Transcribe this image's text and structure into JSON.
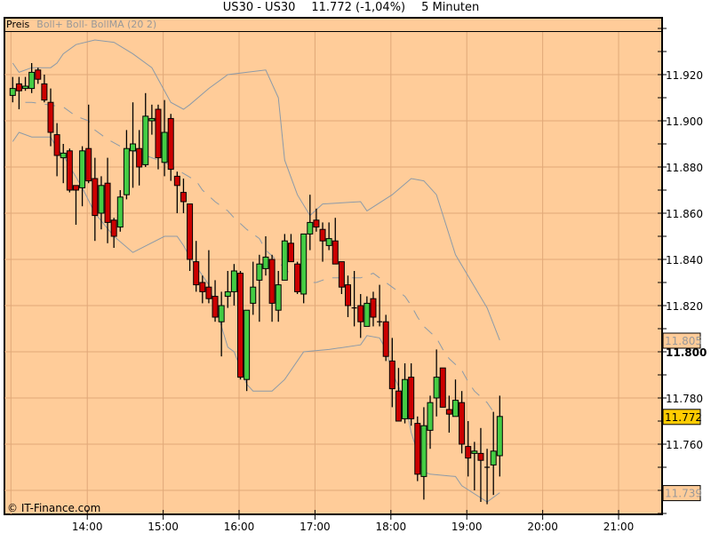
{
  "header": {
    "symbol": "US30 - US30",
    "price": "11.772 (-1,04%)",
    "interval": "5 Minuten"
  },
  "legend": {
    "main": "Preis",
    "indicator": "Boll+ Boll- BollMA (20 2)"
  },
  "copyright": "© IT-Finance.com",
  "colors": {
    "background": "#ffcc99",
    "grid": "#e0a878",
    "up": "#44cc44",
    "down": "#cc0000",
    "band": "#8c9aa8",
    "last_price_box": "#ffcc00"
  },
  "price_markers": {
    "upper_band": "11.805",
    "last": "11.772",
    "lower_band": "11.739"
  },
  "chart_data": {
    "type": "candlestick",
    "title": "US30 - US30",
    "x_ticks": [
      "14:00",
      "15:00",
      "16:00",
      "17:00",
      "18:00",
      "19:00",
      "20:00",
      "21:00"
    ],
    "y_ticks": [
      "11.920",
      "11.900",
      "11.880",
      "11.860",
      "11.840",
      "11.820",
      "11.800",
      "11.780",
      "11.760"
    ],
    "ylim": [
      11.729,
      11.944
    ],
    "xlim": [
      "12:59",
      "21:35"
    ],
    "grid": true,
    "candles": [
      [
        "13:00",
        11.911,
        11.919,
        11.908,
        11.914
      ],
      [
        "13:05",
        11.916,
        11.919,
        11.905,
        11.913
      ],
      [
        "13:10",
        11.914,
        11.919,
        11.913,
        11.915
      ],
      [
        "13:15",
        11.914,
        11.925,
        11.912,
        11.921
      ],
      [
        "13:20",
        11.922,
        11.923,
        11.916,
        11.918
      ],
      [
        "13:25",
        11.916,
        11.92,
        11.908,
        11.909
      ],
      [
        "13:30",
        11.908,
        11.914,
        11.889,
        11.895
      ],
      [
        "13:35",
        11.894,
        11.899,
        11.876,
        11.885
      ],
      [
        "13:40",
        11.884,
        11.89,
        11.873,
        11.886
      ],
      [
        "13:45",
        11.887,
        11.888,
        11.869,
        11.87
      ],
      [
        "13:50",
        11.872,
        11.872,
        11.855,
        11.87
      ],
      [
        "13:55",
        11.871,
        11.889,
        11.863,
        11.887
      ],
      [
        "14:00",
        11.888,
        11.907,
        11.873,
        11.874
      ],
      [
        "14:05",
        11.875,
        11.884,
        11.848,
        11.859
      ],
      [
        "14:10",
        11.86,
        11.876,
        11.853,
        11.872
      ],
      [
        "14:15",
        11.873,
        11.884,
        11.847,
        11.856
      ],
      [
        "14:20",
        11.857,
        11.858,
        11.845,
        11.85
      ],
      [
        "14:25",
        11.854,
        11.87,
        11.852,
        11.867
      ],
      [
        "14:30",
        11.868,
        11.896,
        11.866,
        11.888
      ],
      [
        "14:35",
        11.887,
        11.908,
        11.871,
        11.89
      ],
      [
        "14:40",
        11.888,
        11.896,
        11.872,
        11.88
      ],
      [
        "14:45",
        11.881,
        11.912,
        11.88,
        11.902
      ],
      [
        "14:50",
        11.9,
        11.907,
        11.894,
        11.901
      ],
      [
        "14:55",
        11.905,
        11.907,
        11.879,
        11.884
      ],
      [
        "15:00",
        11.882,
        11.909,
        11.876,
        11.895
      ],
      [
        "15:05",
        11.901,
        11.903,
        11.874,
        11.879
      ],
      [
        "15:10",
        11.876,
        11.878,
        11.86,
        11.872
      ],
      [
        "15:15",
        11.869,
        11.875,
        11.86,
        11.865
      ],
      [
        "15:20",
        11.864,
        11.864,
        11.835,
        11.84
      ],
      [
        "15:25",
        11.839,
        11.848,
        11.826,
        11.829
      ],
      [
        "15:30",
        11.83,
        11.833,
        11.821,
        11.826
      ],
      [
        "15:35",
        11.828,
        11.844,
        11.821,
        11.823
      ],
      [
        "15:40",
        11.824,
        11.831,
        11.813,
        11.815
      ],
      [
        "15:45",
        11.813,
        11.826,
        11.798,
        11.82
      ],
      [
        "15:50",
        11.824,
        11.835,
        11.819,
        11.826
      ],
      [
        "15:55",
        11.826,
        11.838,
        11.82,
        11.835
      ],
      [
        "16:00",
        11.834,
        11.835,
        11.788,
        11.789
      ],
      [
        "16:05",
        11.788,
        11.818,
        11.783,
        11.818
      ],
      [
        "16:10",
        11.821,
        11.839,
        11.816,
        11.828
      ],
      [
        "16:15",
        11.831,
        11.842,
        11.813,
        11.838
      ],
      [
        "16:20",
        11.836,
        11.85,
        11.833,
        11.841
      ],
      [
        "16:25",
        11.84,
        11.842,
        11.813,
        11.821
      ],
      [
        "16:30",
        11.818,
        11.835,
        11.813,
        11.829
      ],
      [
        "16:35",
        11.831,
        11.851,
        11.831,
        11.848
      ],
      [
        "16:40",
        11.847,
        11.851,
        11.839,
        11.839
      ],
      [
        "16:45",
        11.838,
        11.839,
        11.825,
        11.826
      ],
      [
        "16:50",
        11.825,
        11.851,
        11.821,
        11.851
      ],
      [
        "16:55",
        11.851,
        11.868,
        11.844,
        11.856
      ],
      [
        "17:00",
        11.857,
        11.862,
        11.852,
        11.854
      ],
      [
        "17:05",
        11.853,
        11.856,
        11.839,
        11.848
      ],
      [
        "17:10",
        11.846,
        11.856,
        11.844,
        11.849
      ],
      [
        "17:15",
        11.848,
        11.858,
        11.838,
        11.838
      ],
      [
        "17:20",
        11.839,
        11.839,
        11.825,
        11.828
      ],
      [
        "17:25",
        11.829,
        11.833,
        11.815,
        11.82
      ],
      [
        "17:30",
        11.819,
        11.835,
        11.811,
        11.819
      ],
      [
        "17:35",
        11.82,
        11.825,
        11.806,
        11.813
      ],
      [
        "17:40",
        11.811,
        11.824,
        11.811,
        11.821
      ],
      [
        "17:45",
        11.823,
        11.826,
        11.811,
        11.815
      ],
      [
        "17:50",
        11.813,
        11.829,
        11.811,
        11.813
      ],
      [
        "17:55",
        11.813,
        11.816,
        11.796,
        11.798
      ],
      [
        "18:00",
        11.796,
        11.806,
        11.776,
        11.784
      ],
      [
        "18:05",
        11.783,
        11.793,
        11.77,
        11.77
      ],
      [
        "18:10",
        11.771,
        11.795,
        11.769,
        11.788
      ],
      [
        "18:15",
        11.789,
        11.795,
        11.768,
        11.771
      ],
      [
        "18:20",
        11.769,
        11.772,
        11.744,
        11.747
      ],
      [
        "18:25",
        11.746,
        11.776,
        11.736,
        11.768
      ],
      [
        "18:30",
        11.766,
        11.781,
        11.758,
        11.778
      ],
      [
        "18:35",
        11.78,
        11.801,
        11.772,
        11.789
      ],
      [
        "18:40",
        11.793,
        11.793,
        11.776,
        11.776
      ],
      [
        "18:45",
        11.775,
        11.781,
        11.765,
        11.773
      ],
      [
        "18:50",
        11.772,
        11.788,
        11.772,
        11.779
      ],
      [
        "18:55",
        11.778,
        11.783,
        11.756,
        11.76
      ],
      [
        "19:00",
        11.759,
        11.77,
        11.746,
        11.754
      ],
      [
        "19:05",
        11.756,
        11.761,
        11.74,
        11.757
      ],
      [
        "19:10",
        11.756,
        11.767,
        11.735,
        11.753
      ],
      [
        "19:15",
        11.75,
        11.758,
        11.734,
        11.75
      ],
      [
        "19:20",
        11.751,
        11.774,
        11.738,
        11.757
      ],
      [
        "19:25",
        11.755,
        11.781,
        11.746,
        11.772
      ]
    ],
    "series": [
      {
        "name": "Boll+",
        "points": [
          [
            "13:00",
            11.925
          ],
          [
            "13:05",
            11.921
          ],
          [
            "13:15",
            11.923
          ],
          [
            "13:30",
            11.923
          ],
          [
            "13:35",
            11.925
          ],
          [
            "13:40",
            11.929
          ],
          [
            "13:50",
            11.933
          ],
          [
            "14:05",
            11.935
          ],
          [
            "14:20",
            11.934
          ],
          [
            "14:35",
            11.929
          ],
          [
            "14:50",
            11.923
          ],
          [
            "15:05",
            11.908
          ],
          [
            "15:15",
            11.905
          ],
          [
            "15:20",
            11.907
          ],
          [
            "15:35",
            11.914
          ],
          [
            "15:50",
            11.92
          ],
          [
            "16:05",
            11.921
          ],
          [
            "16:20",
            11.922
          ],
          [
            "16:30",
            11.91
          ],
          [
            "16:35",
            11.883
          ],
          [
            "16:45",
            11.868
          ],
          [
            "16:55",
            11.859
          ],
          [
            "17:05",
            11.864
          ],
          [
            "17:35",
            11.865
          ],
          [
            "17:40",
            11.861
          ],
          [
            "18:00",
            11.868
          ],
          [
            "18:15",
            11.875
          ],
          [
            "18:25",
            11.874
          ],
          [
            "18:35",
            11.868
          ],
          [
            "18:50",
            11.842
          ],
          [
            "19:15",
            11.819
          ],
          [
            "19:25",
            11.805
          ]
        ]
      },
      {
        "name": "BollMA",
        "points": [
          [
            "13:10",
            11.908
          ],
          [
            "13:15",
            11.908
          ],
          [
            "13:40",
            11.906
          ],
          [
            "13:50",
            11.902
          ],
          [
            "14:00",
            11.9
          ],
          [
            "14:05",
            11.896
          ],
          [
            "14:15",
            11.892
          ],
          [
            "14:25",
            11.889
          ],
          [
            "14:50",
            11.884
          ],
          [
            "15:00",
            11.882
          ],
          [
            "15:25",
            11.874
          ],
          [
            "15:30",
            11.87
          ],
          [
            "15:40",
            11.865
          ],
          [
            "15:50",
            11.861
          ],
          [
            "15:55",
            11.858
          ],
          [
            "16:05",
            11.853
          ],
          [
            "16:15",
            11.849
          ],
          [
            "16:20",
            11.844
          ],
          [
            "16:30",
            11.839
          ],
          [
            "16:35",
            11.836
          ],
          [
            "16:45",
            11.831
          ],
          [
            "16:55",
            11.83
          ],
          [
            "17:00",
            11.83
          ],
          [
            "17:10",
            11.832
          ],
          [
            "17:35",
            11.832
          ],
          [
            "17:45",
            11.834
          ],
          [
            "17:50",
            11.832
          ],
          [
            "18:00",
            11.828
          ],
          [
            "18:10",
            11.824
          ],
          [
            "18:15",
            11.82
          ],
          [
            "18:20",
            11.815
          ],
          [
            "18:25",
            11.811
          ],
          [
            "18:35",
            11.806
          ],
          [
            "18:40",
            11.801
          ],
          [
            "18:45",
            11.797
          ],
          [
            "18:55",
            11.792
          ],
          [
            "19:00",
            11.787
          ],
          [
            "19:05",
            11.783
          ],
          [
            "19:15",
            11.778
          ],
          [
            "19:20",
            11.774
          ]
        ]
      },
      {
        "name": "Boll-",
        "points": [
          [
            "13:00",
            11.891
          ],
          [
            "13:05",
            11.895
          ],
          [
            "13:15",
            11.893
          ],
          [
            "13:30",
            11.893
          ],
          [
            "13:35",
            11.888
          ],
          [
            "13:40",
            11.885
          ],
          [
            "13:55",
            11.871
          ],
          [
            "14:05",
            11.86
          ],
          [
            "14:20",
            11.85
          ],
          [
            "14:35",
            11.843
          ],
          [
            "15:00",
            11.85
          ],
          [
            "15:10",
            11.85
          ],
          [
            "15:15",
            11.846
          ],
          [
            "15:20",
            11.841
          ],
          [
            "15:35",
            11.829
          ],
          [
            "15:50",
            11.802
          ],
          [
            "15:55",
            11.8
          ],
          [
            "16:05",
            11.786
          ],
          [
            "16:10",
            11.783
          ],
          [
            "16:25",
            11.783
          ],
          [
            "16:35",
            11.788
          ],
          [
            "16:50",
            11.8
          ],
          [
            "17:10",
            11.801
          ],
          [
            "17:35",
            11.803
          ],
          [
            "17:40",
            11.807
          ],
          [
            "17:50",
            11.806
          ],
          [
            "17:55",
            11.801
          ],
          [
            "18:00",
            11.791
          ],
          [
            "18:10",
            11.779
          ],
          [
            "18:15",
            11.765
          ],
          [
            "18:25",
            11.748
          ],
          [
            "18:30",
            11.747
          ],
          [
            "18:50",
            11.746
          ],
          [
            "18:55",
            11.742
          ],
          [
            "19:15",
            11.735
          ],
          [
            "19:25",
            11.739
          ]
        ]
      }
    ]
  }
}
